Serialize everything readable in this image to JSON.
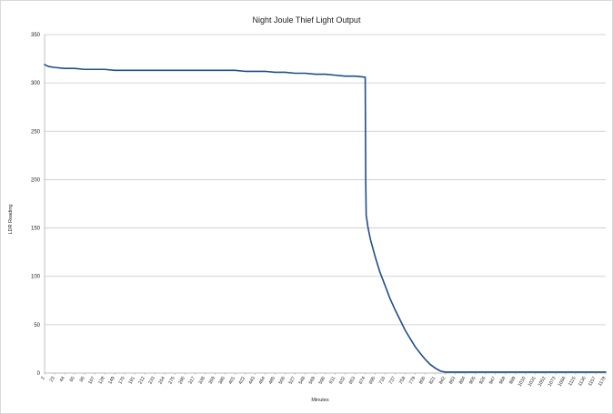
{
  "chart_data": {
    "type": "line",
    "title": "Night Joule Thief Light Output",
    "xlabel": "Minutes",
    "ylabel": "LDR Reading",
    "ylim": [
      0,
      350
    ],
    "yticks": [
      0,
      50,
      100,
      150,
      200,
      250,
      300,
      350
    ],
    "grid": "horizontal",
    "legend": "none",
    "line_color": "#1f4e8c",
    "categories": [
      "2",
      "23",
      "44",
      "65",
      "86",
      "107",
      "128",
      "149",
      "170",
      "191",
      "212",
      "233",
      "254",
      "275",
      "296",
      "317",
      "338",
      "359",
      "380",
      "401",
      "422",
      "443",
      "464",
      "485",
      "506",
      "527",
      "548",
      "569",
      "590",
      "611",
      "632",
      "653",
      "674",
      "695",
      "716",
      "737",
      "758",
      "779",
      "800",
      "821",
      "842",
      "863",
      "884",
      "905",
      "926",
      "947",
      "968",
      "989",
      "1010",
      "1031",
      "1052",
      "1073",
      "1094",
      "1115",
      "1136",
      "1157",
      "1178"
    ],
    "series": [
      {
        "x": [
          2,
          10,
          23,
          44,
          65,
          86,
          107,
          128,
          149,
          170,
          191,
          212,
          233,
          254,
          275,
          296,
          317,
          338,
          359,
          380,
          401,
          422,
          443,
          464,
          485,
          506,
          527,
          548,
          569,
          590,
          611,
          632,
          653,
          674,
          675,
          676,
          680,
          685,
          695,
          705,
          716,
          726,
          737,
          748,
          758,
          769,
          779,
          790,
          800,
          810,
          821,
          832,
          842,
          850,
          856,
          863,
          884,
          905,
          926,
          947,
          968,
          989,
          1010,
          1031,
          1052,
          1073,
          1094,
          1115,
          1136,
          1157,
          1178
        ],
        "values": [
          319,
          317,
          316,
          315,
          315,
          314,
          314,
          314,
          313,
          313,
          313,
          313,
          313,
          313,
          313,
          313,
          313,
          313,
          313,
          313,
          313,
          312,
          312,
          312,
          311,
          311,
          310,
          310,
          309,
          309,
          308,
          307,
          307,
          306,
          200,
          163,
          150,
          138,
          120,
          104,
          90,
          77,
          65,
          54,
          44,
          35,
          27,
          20,
          14,
          9,
          5,
          2,
          1,
          1,
          1,
          1,
          1,
          1,
          1,
          1,
          1,
          1,
          1,
          1,
          1,
          1,
          1,
          1,
          1,
          1,
          1
        ]
      }
    ]
  }
}
